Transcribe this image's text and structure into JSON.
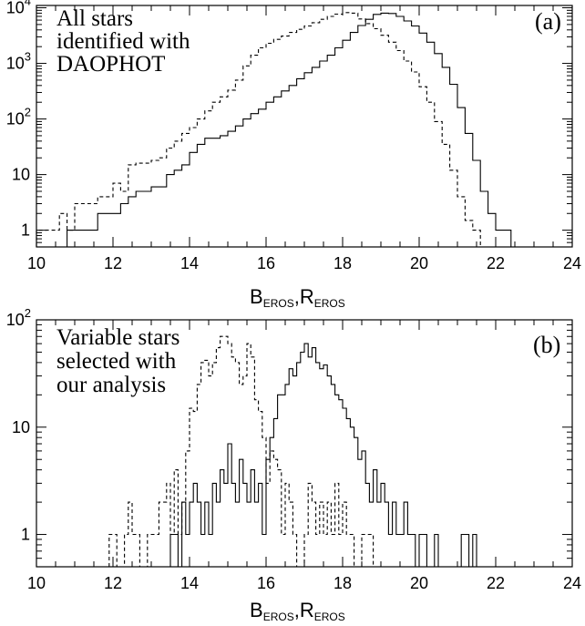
{
  "chart_data": [
    {
      "panel": "(a)",
      "type": "line",
      "step": true,
      "annotation_lines": [
        "All stars",
        "identified with",
        "DAOPHOT"
      ],
      "xlabel": {
        "main1": "B",
        "sub1": "EROS",
        "sep": ",",
        "main2": "R",
        "sub2": "EROS"
      },
      "x_ticks": [
        "10",
        "12",
        "14",
        "16",
        "18",
        "20",
        "22",
        "24"
      ],
      "y_ticks": [
        {
          "v": 1,
          "label": "1",
          "exp": ""
        },
        {
          "v": 10,
          "label": "10",
          "exp": ""
        },
        {
          "v": 100,
          "label": "10",
          "exp": "2"
        },
        {
          "v": 1000,
          "label": "10",
          "exp": "3"
        },
        {
          "v": 10000,
          "label": "10",
          "exp": "4"
        }
      ],
      "xlim": [
        10,
        24
      ],
      "ylim": [
        0.5,
        11000
      ],
      "yscale": "log",
      "grid": false,
      "series": [
        {
          "style": "dashed",
          "x": [
            10.0,
            10.2,
            10.4,
            10.6,
            10.8,
            11.0,
            11.2,
            11.4,
            11.6,
            11.8,
            12.0,
            12.2,
            12.4,
            12.6,
            12.8,
            13.0,
            13.2,
            13.4,
            13.6,
            13.8,
            14.0,
            14.2,
            14.4,
            14.6,
            14.8,
            15.0,
            15.2,
            15.4,
            15.6,
            15.8,
            16.0,
            16.2,
            16.4,
            16.6,
            16.8,
            17.0,
            17.2,
            17.4,
            17.6,
            17.8,
            18.0,
            18.2,
            18.4,
            18.6,
            18.8,
            19.0,
            19.2,
            19.4,
            19.6,
            19.8,
            20.0,
            20.2,
            20.4,
            20.6,
            20.8,
            21.0,
            21.2,
            21.4,
            21.6,
            21.8
          ],
          "y": [
            1,
            1,
            1,
            2,
            1,
            3,
            3,
            3,
            4,
            4,
            7,
            5,
            15,
            16,
            16,
            18,
            20,
            30,
            40,
            55,
            70,
            100,
            140,
            200,
            250,
            330,
            500,
            900,
            1400,
            1900,
            2300,
            2700,
            3100,
            3600,
            4100,
            4700,
            5400,
            6200,
            7000,
            7700,
            8200,
            8000,
            6300,
            5200,
            4200,
            3200,
            2400,
            1700,
            1100,
            700,
            380,
            200,
            90,
            35,
            12,
            4,
            1.5,
            1,
            0,
            0
          ]
        },
        {
          "style": "solid",
          "x": [
            10.0,
            10.2,
            10.4,
            10.6,
            10.8,
            11.0,
            11.2,
            11.4,
            11.6,
            11.8,
            12.0,
            12.2,
            12.4,
            12.6,
            12.8,
            13.0,
            13.2,
            13.4,
            13.6,
            13.8,
            14.0,
            14.2,
            14.4,
            14.6,
            14.8,
            15.0,
            15.2,
            15.4,
            15.6,
            15.8,
            16.0,
            16.2,
            16.4,
            16.6,
            16.8,
            17.0,
            17.2,
            17.4,
            17.6,
            17.8,
            18.0,
            18.2,
            18.4,
            18.6,
            18.8,
            19.0,
            19.2,
            19.4,
            19.6,
            19.8,
            20.0,
            20.2,
            20.4,
            20.6,
            20.8,
            21.0,
            21.2,
            21.4,
            21.6,
            21.8,
            22.0,
            22.2,
            22.4
          ],
          "y": [
            0,
            0,
            0,
            0,
            1,
            1,
            1,
            1,
            2,
            2,
            2,
            3,
            4,
            5,
            5,
            6,
            6,
            10,
            12,
            15,
            25,
            35,
            45,
            45,
            50,
            60,
            75,
            100,
            125,
            150,
            200,
            250,
            320,
            400,
            530,
            680,
            850,
            1100,
            1400,
            1900,
            2600,
            3600,
            4800,
            6200,
            7600,
            8000,
            7900,
            7000,
            5800,
            4700,
            3500,
            2400,
            1500,
            850,
            420,
            160,
            55,
            18,
            5,
            2,
            1,
            1,
            0
          ]
        }
      ]
    },
    {
      "panel": "(b)",
      "type": "line",
      "step": true,
      "annotation_lines": [
        "Variable stars",
        "selected with",
        "our analysis"
      ],
      "xlabel": {
        "main1": "B",
        "sub1": "EROS",
        "sep": ",",
        "main2": "R",
        "sub2": "EROS"
      },
      "x_ticks": [
        "10",
        "12",
        "14",
        "16",
        "18",
        "20",
        "22",
        "24"
      ],
      "y_ticks": [
        {
          "v": 1,
          "label": "1",
          "exp": ""
        },
        {
          "v": 10,
          "label": "10",
          "exp": ""
        },
        {
          "v": 100,
          "label": "10",
          "exp": "2"
        }
      ],
      "xlim": [
        10,
        24
      ],
      "ylim": [
        0.5,
        100
      ],
      "yscale": "log",
      "grid": false,
      "series": [
        {
          "style": "dashed",
          "x": [
            11.9,
            12.0,
            12.1,
            12.2,
            12.3,
            12.4,
            12.5,
            12.6,
            12.7,
            12.8,
            12.9,
            13.0,
            13.1,
            13.2,
            13.3,
            13.4,
            13.5,
            13.6,
            13.7,
            13.8,
            13.9,
            14.0,
            14.1,
            14.2,
            14.3,
            14.4,
            14.5,
            14.6,
            14.7,
            14.8,
            14.9,
            15.0,
            15.1,
            15.2,
            15.3,
            15.4,
            15.5,
            15.6,
            15.7,
            15.8,
            15.9,
            16.0,
            16.1,
            16.2,
            16.3,
            16.4,
            16.5,
            16.6,
            16.7,
            16.8,
            16.9,
            17.0,
            17.1,
            17.2,
            17.3,
            17.4,
            17.5,
            17.6,
            17.7,
            17.8,
            17.9,
            18.0,
            18.1,
            18.2,
            18.3,
            18.4,
            18.5,
            18.6,
            18.7
          ],
          "y": [
            1,
            1,
            0,
            0,
            1,
            2,
            1,
            1,
            0,
            0,
            1,
            1,
            1,
            2,
            2,
            3,
            1,
            4,
            1,
            2,
            6,
            15,
            14,
            25,
            40,
            42,
            30,
            40,
            55,
            70,
            70,
            60,
            45,
            40,
            25,
            30,
            60,
            45,
            18,
            14,
            8,
            3,
            6,
            5,
            4,
            1,
            3,
            2,
            1,
            0,
            0,
            1,
            3,
            2,
            1,
            2,
            1,
            2,
            1,
            3,
            1,
            2,
            1,
            1,
            0,
            0,
            1,
            1,
            1
          ]
        },
        {
          "style": "solid",
          "x": [
            13.5,
            13.6,
            13.7,
            13.8,
            13.9,
            14.0,
            14.1,
            14.2,
            14.3,
            14.4,
            14.5,
            14.6,
            14.7,
            14.8,
            14.9,
            15.0,
            15.1,
            15.2,
            15.3,
            15.4,
            15.5,
            15.6,
            15.7,
            15.8,
            15.9,
            16.0,
            16.1,
            16.2,
            16.3,
            16.4,
            16.5,
            16.6,
            16.7,
            16.8,
            16.9,
            17.0,
            17.1,
            17.2,
            17.3,
            17.4,
            17.5,
            17.6,
            17.7,
            17.8,
            17.9,
            18.0,
            18.1,
            18.2,
            18.3,
            18.4,
            18.5,
            18.6,
            18.7,
            18.8,
            18.9,
            19.0,
            19.1,
            19.2,
            19.3,
            19.4,
            19.5,
            19.6,
            19.7,
            19.8,
            19.9,
            20.0,
            20.1,
            20.2,
            20.3,
            20.4,
            20.5,
            20.6,
            20.7,
            20.8,
            20.9,
            21.0,
            21.1,
            21.2,
            21.3,
            21.4
          ],
          "y": [
            1,
            1,
            0,
            2,
            1,
            2,
            3,
            2,
            1,
            2,
            1,
            3,
            2,
            4,
            3,
            7,
            3,
            2,
            5,
            3,
            2,
            4,
            2,
            3,
            1,
            5,
            8,
            12,
            20,
            20,
            25,
            35,
            30,
            40,
            50,
            60,
            45,
            55,
            40,
            35,
            38,
            30,
            25,
            20,
            18,
            15,
            12,
            10,
            8,
            5,
            6,
            3,
            2,
            4,
            2,
            3,
            2,
            1,
            2,
            1,
            1,
            2,
            1,
            1,
            0,
            1,
            1,
            0,
            0,
            1,
            0,
            0,
            0,
            0,
            0,
            0,
            1,
            1,
            0,
            1
          ]
        }
      ]
    }
  ]
}
